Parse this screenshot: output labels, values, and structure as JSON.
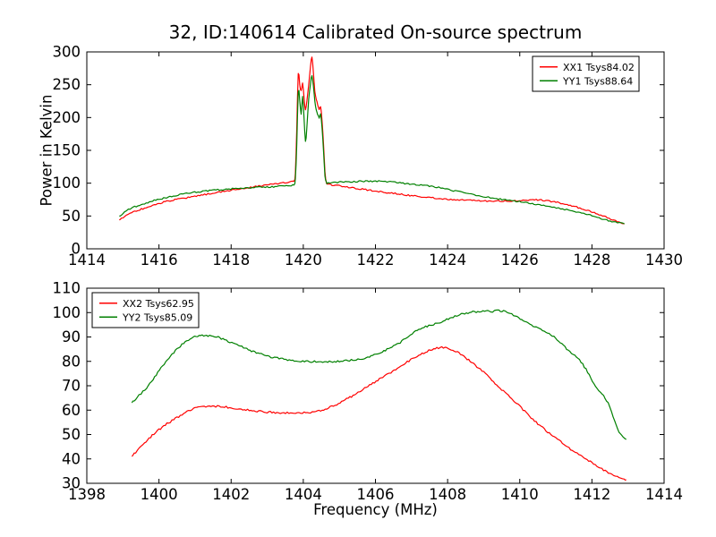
{
  "figure": {
    "title": "32, ID:140614 Calibrated On-source spectrum",
    "background": "#ffffff",
    "frame_color": "#000000"
  },
  "chart_data": [
    {
      "type": "line",
      "position": "top",
      "xlabel": "",
      "ylabel": "Power in Kelvin",
      "xlim": [
        1414,
        1430
      ],
      "ylim": [
        0,
        300
      ],
      "xticks": [
        1414,
        1416,
        1418,
        1420,
        1422,
        1424,
        1426,
        1428,
        1430
      ],
      "yticks": [
        0,
        50,
        100,
        150,
        200,
        250,
        300
      ],
      "grid": false,
      "legend": {
        "loc": "upper right"
      },
      "series": [
        {
          "name": "XX1 Tsys84.02",
          "color": "#ff0000",
          "x": [
            1414.9,
            1415.2,
            1415.6,
            1416.0,
            1416.4,
            1416.9,
            1417.4,
            1417.9,
            1418.4,
            1418.9,
            1419.3,
            1419.6,
            1419.74,
            1419.78,
            1419.82,
            1419.86,
            1419.9,
            1419.94,
            1419.98,
            1420.02,
            1420.06,
            1420.1,
            1420.15,
            1420.2,
            1420.24,
            1420.28,
            1420.32,
            1420.36,
            1420.4,
            1420.44,
            1420.48,
            1420.52,
            1420.56,
            1420.6,
            1420.64,
            1420.7,
            1421.0,
            1421.5,
            1422.0,
            1422.5,
            1423.0,
            1423.5,
            1424.0,
            1424.5,
            1425.0,
            1425.5,
            1426.0,
            1426.5,
            1427.0,
            1427.4,
            1427.8,
            1428.2,
            1428.6,
            1428.9
          ],
          "y": [
            44,
            54,
            62,
            69,
            74.5,
            79,
            84,
            88.5,
            92.5,
            96.5,
            99.5,
            102,
            104,
            115,
            185,
            268,
            250,
            240,
            252,
            230,
            212,
            225,
            250,
            278,
            292,
            268,
            240,
            228,
            220,
            212,
            216,
            195,
            160,
            118,
            100,
            98,
            96,
            92,
            88,
            84.5,
            81,
            78,
            75.5,
            74,
            73,
            72.7,
            73.5,
            74.6,
            71,
            66,
            60,
            52,
            44,
            38
          ]
        },
        {
          "name": "YY1 Tsys88.64",
          "color": "#008000",
          "x": [
            1414.9,
            1415.2,
            1415.6,
            1416.0,
            1416.4,
            1416.9,
            1417.4,
            1417.9,
            1418.4,
            1418.9,
            1419.3,
            1419.6,
            1419.74,
            1419.78,
            1419.82,
            1419.86,
            1419.9,
            1419.94,
            1419.98,
            1420.02,
            1420.06,
            1420.1,
            1420.15,
            1420.2,
            1420.24,
            1420.28,
            1420.32,
            1420.36,
            1420.4,
            1420.44,
            1420.48,
            1420.52,
            1420.56,
            1420.6,
            1420.64,
            1420.7,
            1421.0,
            1421.5,
            1422.0,
            1422.5,
            1423.0,
            1423.6,
            1424.4,
            1425.3,
            1425.9,
            1426.5,
            1427.3,
            1428.0,
            1428.5,
            1428.9
          ],
          "y": [
            50,
            61,
            69,
            75.5,
            80.5,
            85.5,
            88.5,
            91,
            92.7,
            94,
            95,
            96.5,
            98,
            106,
            160,
            240,
            228,
            205,
            232,
            200,
            163,
            185,
            228,
            252,
            264,
            248,
            225,
            212,
            205,
            200,
            205,
            185,
            150,
            112,
            101,
            100.5,
            101.5,
            102.5,
            103,
            101.5,
            98.5,
            95,
            86,
            77,
            72.5,
            67.5,
            59.5,
            50.5,
            42,
            38
          ]
        }
      ]
    },
    {
      "type": "line",
      "position": "bottom",
      "xlabel": "Frequency (MHz)",
      "ylabel": "",
      "xlim": [
        1398,
        1414
      ],
      "ylim": [
        30,
        110
      ],
      "xticks": [
        1398,
        1400,
        1402,
        1404,
        1406,
        1408,
        1410,
        1412,
        1414
      ],
      "yticks": [
        30,
        40,
        50,
        60,
        70,
        80,
        90,
        100,
        110
      ],
      "grid": false,
      "legend": {
        "loc": "upper left"
      },
      "series": [
        {
          "name": "XX2 Tsys62.95",
          "color": "#ff0000",
          "x": [
            1399.25,
            1399.6,
            1400.0,
            1400.5,
            1401.0,
            1401.4,
            1402.0,
            1402.5,
            1403.0,
            1403.6,
            1404.2,
            1404.7,
            1405.2,
            1405.7,
            1406.2,
            1406.7,
            1407.2,
            1407.7,
            1408.1,
            1408.5,
            1409.0,
            1409.5,
            1410.0,
            1410.5,
            1411.0,
            1411.5,
            1412.0,
            1412.5,
            1412.95
          ],
          "y": [
            41,
            46.5,
            52,
            57,
            60.7,
            61.7,
            61,
            60,
            59.2,
            58.8,
            59.2,
            61,
            64.5,
            69,
            73.5,
            78,
            82.5,
            85.5,
            85,
            81.5,
            75.5,
            68.5,
            61.5,
            54.5,
            48.5,
            43,
            38.5,
            34,
            31.5
          ]
        },
        {
          "name": "YY2 Tsys85.09",
          "color": "#008000",
          "x": [
            1399.25,
            1399.7,
            1400.1,
            1400.5,
            1400.9,
            1401.2,
            1401.6,
            1402.2,
            1402.7,
            1403.2,
            1403.8,
            1404.4,
            1405.0,
            1405.6,
            1406.1,
            1406.6,
            1407.2,
            1407.7,
            1408.2,
            1408.7,
            1409.2,
            1409.6,
            1410.1,
            1410.5,
            1410.9,
            1411.3,
            1411.7,
            1412.1,
            1412.45,
            1412.75,
            1412.95
          ],
          "y": [
            63,
            70,
            78,
            85,
            89.5,
            90.6,
            90,
            86.5,
            83.5,
            81.5,
            80.2,
            79.9,
            80.1,
            81,
            83.5,
            87,
            93,
            95.5,
            98.5,
            100.2,
            100.5,
            100.4,
            96.7,
            93.5,
            90.6,
            85.2,
            79.7,
            70,
            62.7,
            51,
            48
          ]
        }
      ]
    }
  ]
}
